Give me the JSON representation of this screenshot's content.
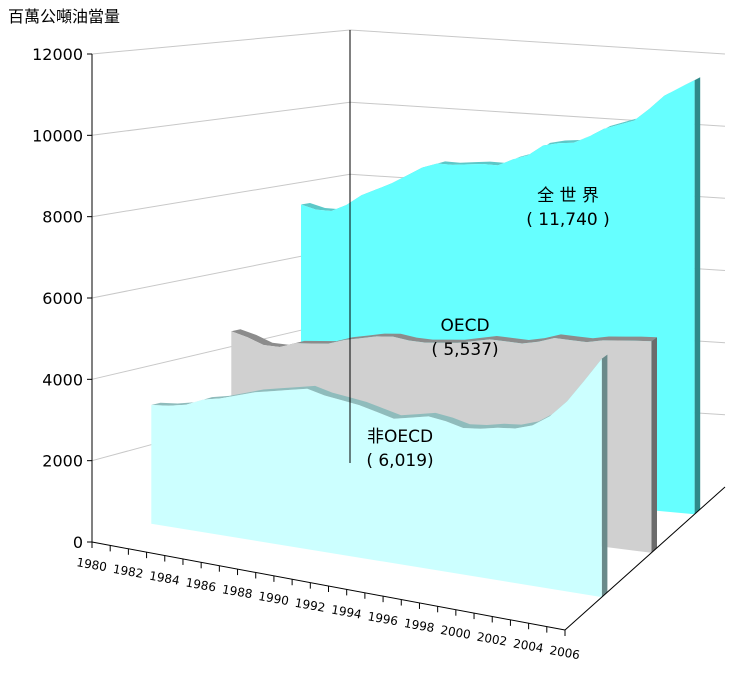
{
  "chart_data": {
    "type": "area",
    "view": "3d",
    "unit_label": "百萬公噸油當量",
    "y_ticks": [
      "0",
      "2000",
      "4000",
      "6000",
      "8000",
      "10000",
      "12000"
    ],
    "x_ticks": [
      "1980",
      "1982",
      "1984",
      "1986",
      "1988",
      "1990",
      "1992",
      "1994",
      "1996",
      "1998",
      "2000",
      "2002",
      "2004",
      "2006"
    ],
    "ylim": [
      0,
      12000
    ],
    "x": [
      1980,
      1981,
      1982,
      1983,
      1984,
      1985,
      1986,
      1987,
      1988,
      1989,
      1990,
      1991,
      1992,
      1993,
      1994,
      1995,
      1996,
      1997,
      1998,
      1999,
      2000,
      2001,
      2002,
      2003,
      2004,
      2005,
      2006
    ],
    "series": [
      {
        "name": "全 世 界",
        "value_label": "( 11,740 )",
        "color": "#66ffff",
        "top_color": "#5cc8c8",
        "side_color": "#2f8a8a",
        "values": [
          7400,
          7300,
          7300,
          7500,
          7800,
          8000,
          8200,
          8450,
          8700,
          8850,
          8850,
          8900,
          8950,
          8950,
          9150,
          9300,
          9600,
          9700,
          9750,
          9950,
          10200,
          10350,
          10500,
          10850,
          11250,
          11500,
          11740
        ]
      },
      {
        "name": "OECD",
        "value_label": "( 5,537)",
        "color": "#d0d0d0",
        "top_color": "#8c8c8c",
        "side_color": "#6b6b6b",
        "values": [
          4400,
          4300,
          4150,
          4150,
          4300,
          4350,
          4400,
          4550,
          4650,
          4750,
          4800,
          4750,
          4750,
          4800,
          4850,
          4950,
          5050,
          5050,
          5050,
          5150,
          5300,
          5300,
          5300,
          5400,
          5450,
          5500,
          5537
        ]
      },
      {
        "name": "非OECD",
        "value_label": "( 6,019)",
        "color": "#ccffff",
        "top_color": "#8fbcbc",
        "side_color": "#6a8a8a",
        "values": [
          3000,
          3050,
          3150,
          3350,
          3450,
          3600,
          3750,
          3850,
          3950,
          4050,
          3950,
          3900,
          3850,
          3750,
          3650,
          3750,
          3850,
          3800,
          3700,
          3750,
          3850,
          3900,
          4050,
          4350,
          4800,
          5400,
          6019
        ]
      }
    ]
  }
}
